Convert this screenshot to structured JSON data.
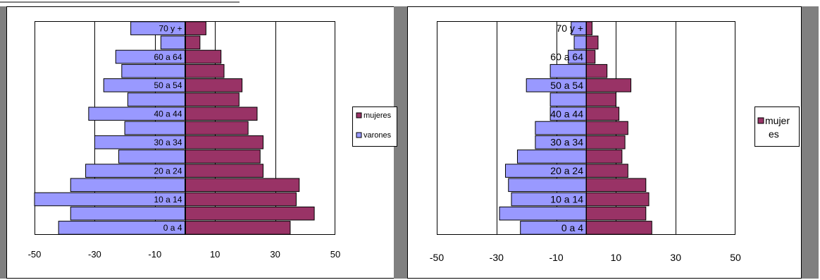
{
  "colors": {
    "mujeres": "#993366",
    "varones": "#9999ff",
    "frame_gray": "#808080",
    "grid": "#000000"
  },
  "chart_data": [
    {
      "type": "bar",
      "orientation": "horizontal",
      "categories": [
        "0 a 4",
        "5 a 9",
        "10 a 14",
        "15 a 19",
        "20 a 24",
        "25 a 29",
        "30 a 34",
        "35 a 39",
        "40 a 44",
        "45 a 49",
        "50 a 54",
        "55 a 59",
        "60 a 64",
        "65 a 69",
        "70 y +"
      ],
      "tick_labels": [
        "0 a 4",
        "10 a 14",
        "20 a 24",
        "30 a 34",
        "40 a 44",
        "50 a 54",
        "60 a 64",
        "70 y +"
      ],
      "series": [
        {
          "name": "mujeres",
          "values": [
            35,
            43,
            37,
            38,
            26,
            25,
            26,
            21,
            24,
            18,
            19,
            13,
            12,
            5,
            7
          ]
        },
        {
          "name": "varones",
          "values": [
            -42,
            -38,
            -50,
            -38,
            -33,
            -22,
            -30,
            -20,
            -32,
            -19,
            -27,
            -21,
            -23,
            -8,
            -18
          ]
        }
      ],
      "xlim": [
        -50,
        50
      ],
      "xticks": [
        -50,
        -30,
        -10,
        10,
        30,
        50
      ],
      "grid": true,
      "legend": "right",
      "legend_entries": [
        "mujeres",
        "varones"
      ]
    },
    {
      "type": "bar",
      "orientation": "horizontal",
      "categories": [
        "0 a 4",
        "5 a 9",
        "10 a 14",
        "15 a 19",
        "20 a 24",
        "25 a 29",
        "30 a 34",
        "35 a 39",
        "40 a 44",
        "45 a 49",
        "50 a 54",
        "55 a 59",
        "60 a 64",
        "65 a 69",
        "70 y +"
      ],
      "tick_labels": [
        "0 a 4",
        "10 a 14",
        "20 a 24",
        "30 a 34",
        "40 a 44",
        "50 a 54",
        "60 a 64",
        "70 y +"
      ],
      "series": [
        {
          "name": "mujeres",
          "values": [
            22,
            20,
            21,
            20,
            14,
            12,
            13,
            14,
            11,
            10,
            15,
            7,
            3,
            4,
            2
          ]
        },
        {
          "name": "varones",
          "values": [
            -22,
            -29,
            -25,
            -26,
            -27,
            -23,
            -17,
            -17,
            -12,
            -12,
            -20,
            -12,
            -6,
            -4,
            -5
          ]
        }
      ],
      "xlim": [
        -50,
        50
      ],
      "xticks": [
        -50,
        -30,
        -10,
        10,
        30,
        50
      ],
      "grid": true,
      "legend": "right",
      "legend_entries": [
        "mujer es"
      ]
    }
  ]
}
